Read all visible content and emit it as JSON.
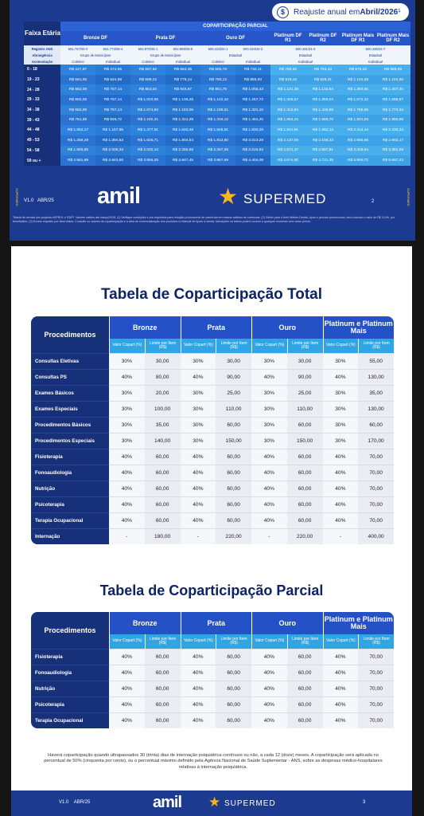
{
  "page2": {
    "badge": {
      "prefix": "Reajuste anual em ",
      "bold": "Abril/2026",
      "suffix": "¹"
    },
    "faixa_label": "Faixa Etária",
    "super_header": "COPARTICIPAÇÃO PARCIAL",
    "plans": [
      "Bronze DF",
      "Prata DF",
      "Ouro DF",
      "Platinum DF R1",
      "Platinum DF R2",
      "Platinum Mais DF R1",
      "Platinum Mais DF R2"
    ],
    "meta_rows": [
      {
        "label": "Registro ANS",
        "cells": [
          "501.757/25-0",
          "501.773/25-4",
          "502.870/25-1",
          "502.869/25-8",
          "500.433/24-1",
          "500.434/24-2",
          "500.431/24-4",
          "500.435/24-7"
        ]
      },
      {
        "label": "Abrangência",
        "cells": [
          "Grupo de Municípios",
          "Grupo de Municípios",
          "Estadual",
          "Estadual",
          "Estadual"
        ]
      },
      {
        "label": "Acomodação",
        "cells": [
          "Coletivo",
          "Individual",
          "Coletivo",
          "Individual",
          "Coletivo",
          "Individual",
          "Individual",
          "Individual"
        ]
      }
    ],
    "rows": [
      {
        "age": "0 - 18",
        "values": [
          "R$ 427,87",
          "R$ 474,95",
          "R$ 597,62",
          "R$ 663,36",
          "R$ 666,78",
          "R$ 740,11",
          "R$ 785,62",
          "R$ 793,43",
          "R$ 976,32",
          "R$ 985,99"
        ]
      },
      {
        "age": "19 - 23",
        "values": [
          "R$ 581,05",
          "R$ 644,98",
          "R$ 699,22",
          "R$ 776,14",
          "R$ 780,12",
          "R$ 865,93",
          "R$ 919,16",
          "R$ 928,31",
          "R$ 1.142,28",
          "R$ 1.153,60"
        ]
      },
      {
        "age": "24 - 28",
        "values": [
          "R$ 682,09",
          "R$ 757,14",
          "R$ 853,04",
          "R$ 946,87",
          "R$ 951,76",
          "R$ 1.056,43",
          "R$ 1.121,39",
          "R$ 1.132,54",
          "R$ 1.393,60",
          "R$ 1.407,40"
        ]
      },
      {
        "age": "29 - 33",
        "values": [
          "R$ 682,09",
          "R$ 757,14",
          "R$ 1.023,65",
          "R$ 1.136,26",
          "R$ 1.142,10",
          "R$ 1.267,72",
          "R$ 1.345,67",
          "R$ 1.359,04",
          "R$ 1.672,32",
          "R$ 1.688,87"
        ]
      },
      {
        "age": "34 - 38",
        "values": [
          "R$ 682,09",
          "R$ 757,14",
          "R$ 1.074,84",
          "R$ 1.193,06",
          "R$ 1.199,21",
          "R$ 1.331,10",
          "R$ 1.412,94",
          "R$ 1.426,99",
          "R$ 1.755,95",
          "R$ 1.773,34"
        ]
      },
      {
        "age": "39 - 43",
        "values": [
          "R$ 761,89",
          "R$ 845,72",
          "R$ 1.182,31",
          "R$ 1.312,38",
          "R$ 1.319,12",
          "R$ 1.464,20",
          "R$ 1.554,24",
          "R$ 1.569,70",
          "R$ 1.931,53",
          "R$ 1.950,66"
        ]
      },
      {
        "age": "44 - 48",
        "values": [
          "R$ 1.052,17",
          "R$ 1.167,95",
          "R$ 1.477,91",
          "R$ 1.640,48",
          "R$ 1.648,91",
          "R$ 1.830,26",
          "R$ 1.942,81",
          "R$ 1.962,12",
          "R$ 2.414,44",
          "R$ 2.438,34"
        ]
      },
      {
        "age": "49 - 53",
        "values": [
          "R$ 1.256,29",
          "R$ 1.394,53",
          "R$ 1.625,71",
          "R$ 1.804,54",
          "R$ 1.813,80",
          "R$ 2.013,29",
          "R$ 2.137,09",
          "R$ 2.158,33",
          "R$ 2.655,86",
          "R$ 2.682,17"
        ]
      },
      {
        "age": "54 - 58",
        "values": [
          "R$ 1.806,55",
          "R$ 2.005,33",
          "R$ 2.032,14",
          "R$ 2.255,68",
          "R$ 2.267,26",
          "R$ 2.516,62",
          "R$ 2.671,37",
          "R$ 2.697,91",
          "R$ 3.319,84",
          "R$ 3.352,69"
        ]
      },
      {
        "age": "59 ou +",
        "values": [
          "R$ 2.561,89",
          "R$ 2.843,56",
          "R$ 3.556,26",
          "R$ 3.947,45",
          "R$ 3.967,69",
          "R$ 4.404,08",
          "R$ 4.674,90",
          "R$ 4.721,35",
          "R$ 5.809,72",
          "R$ 5.867,23"
        ]
      }
    ],
    "version": "V1.0",
    "date": "ABR/25",
    "logo_amil": "amil",
    "logo_supermed": "SUPERMED",
    "page_number": "2",
    "disclaimer": "Tabela de vendas dos projetos ASPROL e RAFF. Valores válidos até março/2026. (1) Verifique condições e pré-requisitos para redução promocional de carências em nossos aditivos de carências. (2) Válido para o Amil Atlético Dental. Após o período promocional, será cobrado o valor de R$ 14,99, por beneficiário. (3) Exceto requisito por faixa etária. Consulte os valores da coparticipação e a área de comercialização dos produtos no Manual de Apoio à venda. Alterações na tabela podem ocorrer a qualquer momento sem aviso prévio."
  },
  "page3": {
    "title_total": "Tabela de Coparticipação Total",
    "title_parcial": "Tabela de Coparticipação Parcial",
    "proc_header": "Procedimentos",
    "groups": [
      "Bronze",
      "Prata",
      "Ouro",
      "Platinum e Platinum Mais"
    ],
    "sub_headers": [
      "Valor Copart (%)",
      "Limite por Item (R$)"
    ],
    "total_rows": [
      {
        "name": "Consultas Eletivas",
        "values": [
          "30%",
          "30,00",
          "30%",
          "30,00",
          "30%",
          "30,00",
          "30%",
          "55,00"
        ]
      },
      {
        "name": "Consultas PS",
        "values": [
          "40%",
          "80,00",
          "40%",
          "90,00",
          "40%",
          "90,00",
          "40%",
          "130,00"
        ]
      },
      {
        "name": "Exames Básicos",
        "values": [
          "30%",
          "20,00",
          "30%",
          "25,00",
          "30%",
          "25,00",
          "30%",
          "35,00"
        ]
      },
      {
        "name": "Exames Especiais",
        "values": [
          "30%",
          "100,00",
          "30%",
          "110,00",
          "30%",
          "110,00",
          "30%",
          "130,00"
        ]
      },
      {
        "name": "Procedimentos Básicos",
        "values": [
          "30%",
          "35,00",
          "30%",
          "60,00",
          "30%",
          "60,00",
          "30%",
          "60,00"
        ]
      },
      {
        "name": "Procedimentos Especiais",
        "values": [
          "30%",
          "140,00",
          "30%",
          "150,00",
          "30%",
          "150,00",
          "30%",
          "170,00"
        ]
      },
      {
        "name": "Fisioterapia",
        "values": [
          "40%",
          "60,00",
          "40%",
          "60,00",
          "40%",
          "60,00",
          "40%",
          "70,00"
        ]
      },
      {
        "name": "Fonoaudiologia",
        "values": [
          "40%",
          "60,00",
          "40%",
          "60,00",
          "40%",
          "60,00",
          "40%",
          "70,00"
        ]
      },
      {
        "name": "Nutrição",
        "values": [
          "40%",
          "60,00",
          "40%",
          "60,00",
          "40%",
          "60,00",
          "40%",
          "70,00"
        ]
      },
      {
        "name": "Psicoterapia",
        "values": [
          "40%",
          "60,00",
          "40%",
          "60,00",
          "40%",
          "60,00",
          "40%",
          "70,00"
        ]
      },
      {
        "name": "Terapia Ocupacional",
        "values": [
          "40%",
          "60,00",
          "40%",
          "60,00",
          "40%",
          "60,00",
          "40%",
          "70,00"
        ]
      },
      {
        "name": "Internação",
        "values": [
          "-",
          "180,00",
          "-",
          "220,00",
          "-",
          "220,00",
          "-",
          "400,00"
        ]
      }
    ],
    "parcial_rows": [
      {
        "name": "Fisioterapia",
        "values": [
          "40%",
          "60,00",
          "40%",
          "60,00",
          "40%",
          "60,00",
          "40%",
          "70,00"
        ]
      },
      {
        "name": "Fonoaudiologia",
        "values": [
          "40%",
          "60,00",
          "40%",
          "60,00",
          "40%",
          "60,00",
          "40%",
          "70,00"
        ]
      },
      {
        "name": "Nutrição",
        "values": [
          "40%",
          "60,00",
          "40%",
          "60,00",
          "40%",
          "60,00",
          "40%",
          "70,00"
        ]
      },
      {
        "name": "Psicoterapia",
        "values": [
          "40%",
          "60,00",
          "40%",
          "60,00",
          "40%",
          "60,00",
          "40%",
          "70,00"
        ]
      },
      {
        "name": "Terapia Ocupacional",
        "values": [
          "40%",
          "60,00",
          "40%",
          "60,00",
          "40%",
          "60,00",
          "40%",
          "70,00"
        ]
      }
    ],
    "note": "Haverá coparticipação quando ultrapassados 30 (trinta) dias de internação psiquiátrica contínuos ou não, a cada 12 (doze) meses. A coparticipação será aplicada no percentual de 50% (cinquenta por cento), ou o percentual máximo definido pela Agência Nacional de Saúde Suplementar - ANS, sobre as despesas médico-hospitalares relativas à internação psiquiátrica.",
    "version": "V1.0",
    "date": "ABR/25",
    "logo_amil": "amil",
    "logo_supermed": "SUPERMED",
    "page_number": "3"
  },
  "colors": {
    "brand_blue": "#1c3a8f",
    "navy": "#17307a",
    "accent_blue": "#2451c6",
    "light_blue": "#2fa5e4",
    "star_yellow": "#f6b51d"
  }
}
